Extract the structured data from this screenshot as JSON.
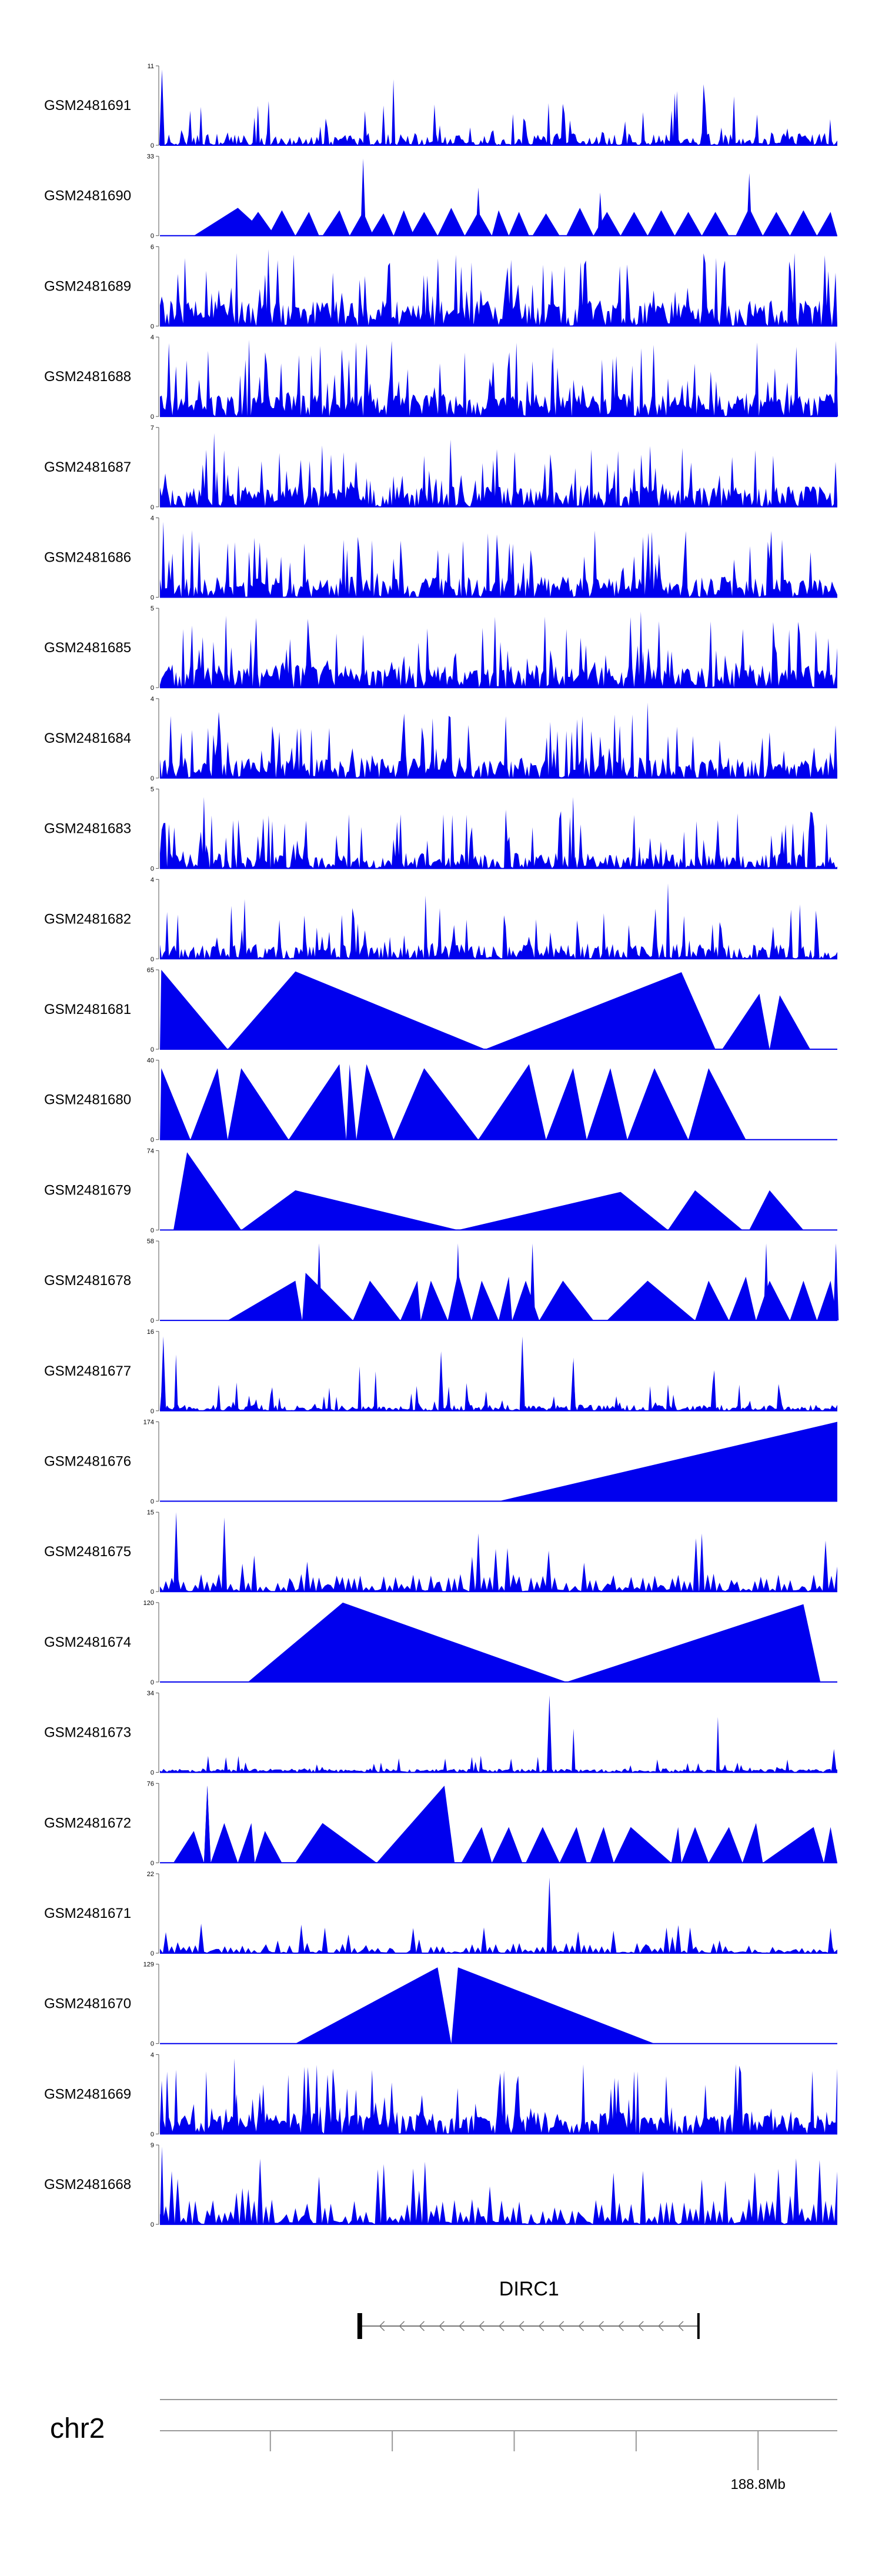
{
  "chart_data": {
    "type": "area",
    "title": "",
    "fill_color": "#0000ee",
    "axis_min": 0,
    "tracks": [
      {
        "name": "GSM2481691",
        "ymax": "11",
        "max": 11,
        "pattern": "noise",
        "seed": 91,
        "density": 0.5,
        "base": 0.12,
        "spike": 0.45,
        "peaks": [
          [
            0.003,
            10.5,
            0.004
          ],
          [
            0.33,
            5.5,
            0.003
          ],
          [
            0.76,
            7.2,
            0.003
          ]
        ]
      },
      {
        "name": "GSM2481690",
        "ymax": "33",
        "max": 33,
        "pattern": "tri",
        "seed": 90,
        "tris": [
          [
            0.05,
            0.115,
            0.16
          ],
          [
            0.12,
            0.145,
            0.17
          ],
          [
            0.16,
            0.18,
            0.2
          ],
          [
            0.2,
            0.22,
            0.235
          ],
          [
            0.24,
            0.265,
            0.28
          ],
          [
            0.28,
            0.3,
            0.315
          ],
          [
            0.31,
            0.33,
            0.345
          ],
          [
            0.345,
            0.36,
            0.375
          ],
          [
            0.37,
            0.39,
            0.41
          ],
          [
            0.41,
            0.43,
            0.45
          ],
          [
            0.45,
            0.47,
            0.49
          ],
          [
            0.49,
            0.5,
            0.515
          ],
          [
            0.515,
            0.53,
            0.545
          ],
          [
            0.55,
            0.57,
            0.59
          ],
          [
            0.6,
            0.62,
            0.64
          ],
          [
            0.64,
            0.66,
            0.68
          ],
          [
            0.68,
            0.7,
            0.72
          ],
          [
            0.72,
            0.74,
            0.76
          ],
          [
            0.76,
            0.78,
            0.8
          ],
          [
            0.8,
            0.82,
            0.84
          ],
          [
            0.85,
            0.87,
            0.89
          ],
          [
            0.89,
            0.91,
            0.93
          ],
          [
            0.93,
            0.95,
            0.97
          ],
          [
            0.97,
            0.99,
            1.0
          ]
        ],
        "triH": [
          0.35,
          0.3,
          0.32,
          0.3,
          0.32,
          0.3,
          0.28,
          0.32,
          0.3,
          0.35,
          0.3,
          0.32,
          0.3,
          0.28,
          0.35,
          0.3,
          0.3,
          0.32,
          0.3,
          0.3,
          0.35,
          0.3,
          0.32,
          0.3
        ],
        "peaks": [
          [
            0.3,
            32,
            0.004
          ],
          [
            0.47,
            20,
            0.004
          ],
          [
            0.65,
            18,
            0.004
          ],
          [
            0.87,
            26,
            0.004
          ]
        ]
      },
      {
        "name": "GSM2481689",
        "ymax": "6",
        "max": 6,
        "pattern": "noise",
        "seed": 89,
        "density": 0.85,
        "base": 0.25,
        "spike": 0.7,
        "peaks": [
          [
            0.16,
            5.8,
            0.003
          ],
          [
            0.46,
            4.8,
            0.003
          ]
        ]
      },
      {
        "name": "GSM2481688",
        "ymax": "4",
        "max": 4,
        "pattern": "noise",
        "seed": 88,
        "density": 0.85,
        "base": 0.22,
        "spike": 0.75,
        "peaks": [
          [
            0.58,
            3.5,
            0.003
          ],
          [
            0.998,
            3.8,
            0.003
          ]
        ]
      },
      {
        "name": "GSM2481687",
        "ymax": "7",
        "max": 7,
        "pattern": "noise",
        "seed": 87,
        "density": 0.8,
        "base": 0.2,
        "spike": 0.6,
        "peaks": [
          [
            0.08,
            6.5,
            0.003
          ],
          [
            0.39,
            4.5,
            0.003
          ]
        ]
      },
      {
        "name": "GSM2481686",
        "ymax": "4",
        "max": 4,
        "pattern": "noise",
        "seed": 86,
        "density": 0.8,
        "base": 0.2,
        "spike": 0.65,
        "peaks": [
          [
            0.005,
            3.8,
            0.003
          ]
        ]
      },
      {
        "name": "GSM2481685",
        "ymax": "5",
        "max": 5,
        "pattern": "noise",
        "seed": 85,
        "density": 0.85,
        "base": 0.22,
        "spike": 0.7,
        "peaks": [
          [
            0.71,
            4.8,
            0.003
          ]
        ]
      },
      {
        "name": "GSM2481684",
        "ymax": "4",
        "max": 4,
        "pattern": "noise",
        "seed": 84,
        "density": 0.8,
        "base": 0.2,
        "spike": 0.65,
        "peaks": [
          [
            0.72,
            3.8,
            0.003
          ]
        ]
      },
      {
        "name": "GSM2481683",
        "ymax": "5",
        "max": 5,
        "pattern": "noise",
        "seed": 83,
        "density": 0.7,
        "base": 0.15,
        "spike": 0.55,
        "peaks": [
          [
            0.065,
            4.5,
            0.003
          ],
          [
            0.61,
            4.5,
            0.003
          ]
        ]
      },
      {
        "name": "GSM2481682",
        "ymax": "4",
        "max": 4,
        "pattern": "noise",
        "seed": 82,
        "density": 0.7,
        "base": 0.15,
        "spike": 0.5,
        "peaks": [
          [
            0.75,
            3.8,
            0.003
          ],
          [
            0.125,
            3.0,
            0.003
          ]
        ]
      },
      {
        "name": "GSM2481681",
        "ymax": "65",
        "max": 65,
        "pattern": "tri",
        "seed": 81,
        "tris": [
          [
            0.0,
            0.002,
            0.1
          ],
          [
            0.1,
            0.2,
            0.48
          ],
          [
            0.48,
            0.77,
            0.82
          ],
          [
            0.83,
            0.885,
            0.9
          ],
          [
            0.9,
            0.915,
            0.96
          ]
        ],
        "triH": [
          1.0,
          0.98,
          0.97,
          0.7,
          0.68
        ],
        "peaks": []
      },
      {
        "name": "GSM2481680",
        "ymax": "40",
        "max": 40,
        "pattern": "tri",
        "seed": 80,
        "tris": [
          [
            0.0,
            0.002,
            0.045
          ],
          [
            0.045,
            0.085,
            0.1
          ],
          [
            0.1,
            0.12,
            0.19
          ],
          [
            0.19,
            0.265,
            0.275
          ],
          [
            0.275,
            0.28,
            0.29
          ],
          [
            0.29,
            0.305,
            0.345
          ],
          [
            0.345,
            0.39,
            0.47
          ],
          [
            0.47,
            0.545,
            0.57
          ],
          [
            0.57,
            0.61,
            0.63
          ],
          [
            0.63,
            0.665,
            0.69
          ],
          [
            0.69,
            0.73,
            0.78
          ],
          [
            0.78,
            0.81,
            0.865
          ]
        ],
        "triH": [
          0.9,
          0.9,
          0.9,
          0.95,
          0.95,
          0.95,
          0.9,
          0.95,
          0.9,
          0.9,
          0.9,
          0.9
        ],
        "peaks": []
      },
      {
        "name": "GSM2481679",
        "ymax": "74",
        "max": 74,
        "pattern": "tri",
        "seed": 79,
        "tris": [
          [
            0.02,
            0.04,
            0.12
          ],
          [
            0.12,
            0.2,
            0.44
          ],
          [
            0.44,
            0.68,
            0.75
          ],
          [
            0.75,
            0.79,
            0.86
          ],
          [
            0.87,
            0.9,
            0.95
          ]
        ],
        "triH": [
          0.98,
          0.5,
          0.48,
          0.5,
          0.5
        ],
        "peaks": []
      },
      {
        "name": "GSM2481678",
        "ymax": "58",
        "max": 58,
        "pattern": "tri",
        "seed": 78,
        "tris": [
          [
            0.1,
            0.2,
            0.21
          ],
          [
            0.21,
            0.215,
            0.285
          ],
          [
            0.285,
            0.31,
            0.355
          ],
          [
            0.355,
            0.38,
            0.385
          ],
          [
            0.385,
            0.4,
            0.425
          ],
          [
            0.425,
            0.44,
            0.46
          ],
          [
            0.46,
            0.475,
            0.5
          ],
          [
            0.5,
            0.515,
            0.52
          ],
          [
            0.52,
            0.54,
            0.56
          ],
          [
            0.56,
            0.595,
            0.64
          ],
          [
            0.66,
            0.72,
            0.79
          ],
          [
            0.79,
            0.81,
            0.84
          ],
          [
            0.84,
            0.865,
            0.88
          ],
          [
            0.88,
            0.9,
            0.93
          ],
          [
            0.93,
            0.95,
            0.97
          ],
          [
            0.97,
            0.99,
            1.0
          ]
        ],
        "triH": [
          0.5,
          0.6,
          0.5,
          0.5,
          0.5,
          0.6,
          0.5,
          0.55,
          0.5,
          0.5,
          0.5,
          0.5,
          0.55,
          0.5,
          0.5,
          0.5
        ],
        "peaks": [
          [
            0.235,
            0.97,
            0.004
          ],
          [
            0.44,
            0.97,
            0.004
          ],
          [
            0.55,
            0.97,
            0.004
          ],
          [
            0.895,
            0.97,
            0.004
          ],
          [
            0.998,
            0.97,
            0.004
          ]
        ]
      },
      {
        "name": "GSM2481677",
        "ymax": "16",
        "max": 16,
        "pattern": "noise",
        "seed": 77,
        "density": 0.55,
        "base": 0.06,
        "spike": 0.3,
        "peaks": [
          [
            0.005,
            15,
            0.004
          ],
          [
            0.415,
            12,
            0.004
          ],
          [
            0.535,
            15,
            0.004
          ],
          [
            0.61,
            10,
            0.004
          ]
        ]
      },
      {
        "name": "GSM2481676",
        "ymax": "174",
        "max": 174,
        "pattern": "tri",
        "seed": 76,
        "tris": [
          [
            0.5,
            1.0,
            1.0
          ]
        ],
        "triH": [
          1.0
        ],
        "peaks": []
      },
      {
        "name": "GSM2481675",
        "ymax": "15",
        "max": 15,
        "pattern": "spiky",
        "seed": 75,
        "density": 0.8,
        "base": 0.18,
        "spike": 0.45,
        "peaks": [
          [
            0.024,
            15,
            0.004
          ],
          [
            0.095,
            14,
            0.004
          ],
          [
            0.47,
            11,
            0.004
          ],
          [
            0.8,
            11,
            0.004
          ]
        ]
      },
      {
        "name": "GSM2481674",
        "ymax": "120",
        "max": 120,
        "pattern": "tri",
        "seed": 74,
        "tris": [
          [
            0.13,
            0.27,
            0.6
          ],
          [
            0.6,
            0.95,
            0.975
          ]
        ],
        "triH": [
          1.0,
          0.98
        ],
        "peaks": []
      },
      {
        "name": "GSM2481673",
        "ymax": "34",
        "max": 34,
        "pattern": "noise",
        "seed": 73,
        "density": 0.45,
        "base": 0.04,
        "spike": 0.18,
        "peaks": [
          [
            0.575,
            33,
            0.004
          ],
          [
            0.995,
            10,
            0.004
          ]
        ]
      },
      {
        "name": "GSM2481672",
        "ymax": "76",
        "max": 76,
        "pattern": "tri",
        "seed": 72,
        "tris": [
          [
            0.02,
            0.05,
            0.065
          ],
          [
            0.065,
            0.07,
            0.075
          ],
          [
            0.065,
            0.07,
            0.075
          ],
          [
            0.075,
            0.095,
            0.115
          ],
          [
            0.115,
            0.135,
            0.14
          ],
          [
            0.14,
            0.155,
            0.18
          ],
          [
            0.2,
            0.24,
            0.32
          ],
          [
            0.32,
            0.42,
            0.435
          ],
          [
            0.445,
            0.475,
            0.49
          ],
          [
            0.49,
            0.515,
            0.535
          ],
          [
            0.54,
            0.565,
            0.59
          ],
          [
            0.59,
            0.615,
            0.63
          ],
          [
            0.635,
            0.655,
            0.67
          ],
          [
            0.67,
            0.695,
            0.755
          ],
          [
            0.755,
            0.765,
            0.77
          ],
          [
            0.77,
            0.79,
            0.81
          ],
          [
            0.81,
            0.84,
            0.86
          ],
          [
            0.86,
            0.88,
            0.89
          ],
          [
            0.89,
            0.965,
            0.98
          ],
          [
            0.98,
            0.99,
            1.0
          ]
        ],
        "triH": [
          0.4,
          0.97,
          0.97,
          0.5,
          0.5,
          0.4,
          0.5,
          0.97,
          0.45,
          0.45,
          0.45,
          0.45,
          0.45,
          0.45,
          0.45,
          0.45,
          0.45,
          0.5,
          0.45,
          0.45
        ],
        "peaks": [
          [
            0.07,
            0.97,
            0.004
          ],
          [
            0.42,
            0.97,
            0.004
          ]
        ]
      },
      {
        "name": "GSM2481671",
        "ymax": "22",
        "max": 22,
        "pattern": "spiky",
        "seed": 71,
        "density": 0.75,
        "base": 0.1,
        "spike": 0.28,
        "peaks": [
          [
            0.575,
            21,
            0.004
          ],
          [
            0.99,
            7,
            0.004
          ]
        ]
      },
      {
        "name": "GSM2481670",
        "ymax": "129",
        "max": 129,
        "pattern": "tri",
        "seed": 70,
        "tris": [
          [
            0.2,
            0.41,
            0.43
          ],
          [
            0.43,
            0.44,
            0.73
          ]
        ],
        "triH": [
          0.96,
          0.96
        ],
        "peaks": []
      },
      {
        "name": "GSM2481669",
        "ymax": "4",
        "max": 4,
        "pattern": "noise",
        "seed": 69,
        "density": 0.85,
        "base": 0.22,
        "spike": 0.7,
        "peaks": [
          [
            0.11,
            3.8,
            0.003
          ],
          [
            0.625,
            3.5,
            0.003
          ]
        ]
      },
      {
        "name": "GSM2481668",
        "ymax": "9",
        "max": 9,
        "pattern": "spiky",
        "seed": 68,
        "density": 0.85,
        "base": 0.25,
        "spike": 0.55,
        "peaks": [
          [
            0.003,
            8.8,
            0.003
          ]
        ]
      }
    ],
    "gene": {
      "name": "DIRC1",
      "start": 0.295,
      "end": 0.795,
      "strand": "-"
    },
    "chromosome": "chr2",
    "axis_tick_label": "188.8Mb",
    "axis_ticks": [
      0.163,
      0.343,
      0.523,
      0.703,
      0.883
    ]
  }
}
